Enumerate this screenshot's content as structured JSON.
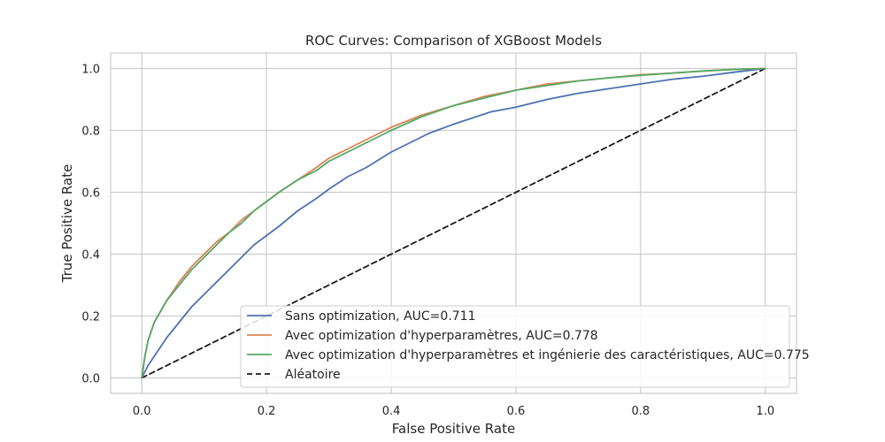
{
  "chart_data": {
    "type": "line",
    "title": "ROC Curves: Comparison of XGBoost Models",
    "xlabel": "False Positive Rate",
    "ylabel": "True Positive Rate",
    "xlim": [
      -0.05,
      1.05
    ],
    "ylim": [
      -0.05,
      1.05
    ],
    "x_ticks": [
      "0.0",
      "0.2",
      "0.4",
      "0.6",
      "0.8",
      "1.0"
    ],
    "y_ticks": [
      "0.0",
      "0.2",
      "0.4",
      "0.6",
      "0.8",
      "1.0"
    ],
    "grid": true,
    "legend_position": "lower-right",
    "series": [
      {
        "name": "Sans optimization, AUC=0.711",
        "color": "#4c72b0",
        "dash": "solid",
        "x": [
          0,
          0.01,
          0.02,
          0.04,
          0.06,
          0.08,
          0.1,
          0.12,
          0.14,
          0.16,
          0.18,
          0.2,
          0.22,
          0.25,
          0.28,
          0.3,
          0.33,
          0.36,
          0.4,
          0.43,
          0.46,
          0.5,
          0.53,
          0.56,
          0.6,
          0.65,
          0.7,
          0.75,
          0.8,
          0.85,
          0.9,
          0.95,
          1.0
        ],
        "y": [
          0.0,
          0.04,
          0.07,
          0.13,
          0.18,
          0.23,
          0.27,
          0.31,
          0.35,
          0.39,
          0.43,
          0.46,
          0.49,
          0.54,
          0.58,
          0.61,
          0.65,
          0.68,
          0.73,
          0.76,
          0.79,
          0.82,
          0.84,
          0.86,
          0.875,
          0.9,
          0.92,
          0.935,
          0.95,
          0.965,
          0.975,
          0.988,
          1.0
        ]
      },
      {
        "name": "Avec optimization d'hyperparamètres, AUC=0.778",
        "color": "#dd8452",
        "dash": "solid",
        "x": [
          0,
          0.005,
          0.01,
          0.02,
          0.04,
          0.06,
          0.08,
          0.1,
          0.12,
          0.14,
          0.16,
          0.18,
          0.2,
          0.22,
          0.25,
          0.28,
          0.3,
          0.33,
          0.36,
          0.4,
          0.45,
          0.5,
          0.55,
          0.6,
          0.65,
          0.7,
          0.75,
          0.8,
          0.85,
          0.9,
          0.95,
          1.0
        ],
        "y": [
          0.0,
          0.07,
          0.12,
          0.18,
          0.25,
          0.31,
          0.36,
          0.4,
          0.44,
          0.47,
          0.51,
          0.54,
          0.57,
          0.6,
          0.64,
          0.68,
          0.71,
          0.74,
          0.77,
          0.81,
          0.85,
          0.88,
          0.91,
          0.93,
          0.95,
          0.96,
          0.97,
          0.98,
          0.985,
          0.992,
          0.997,
          1.0
        ]
      },
      {
        "name": "Avec optimization d'hyperparamètres et ingénierie des caractéristiques, AUC=0.775",
        "color": "#55a868",
        "dash": "solid",
        "x": [
          0,
          0.005,
          0.01,
          0.02,
          0.04,
          0.06,
          0.08,
          0.1,
          0.12,
          0.14,
          0.16,
          0.18,
          0.2,
          0.22,
          0.25,
          0.28,
          0.3,
          0.33,
          0.36,
          0.4,
          0.45,
          0.5,
          0.55,
          0.6,
          0.65,
          0.7,
          0.75,
          0.8,
          0.85,
          0.9,
          0.95,
          1.0
        ],
        "y": [
          0.0,
          0.07,
          0.12,
          0.18,
          0.25,
          0.3,
          0.35,
          0.39,
          0.43,
          0.47,
          0.5,
          0.54,
          0.57,
          0.6,
          0.64,
          0.67,
          0.7,
          0.73,
          0.76,
          0.8,
          0.845,
          0.88,
          0.905,
          0.93,
          0.945,
          0.96,
          0.97,
          0.978,
          0.985,
          0.992,
          0.997,
          1.0
        ]
      },
      {
        "name": "Aléatoire",
        "color": "#1a1a1a",
        "dash": "dashed",
        "x": [
          0,
          1
        ],
        "y": [
          0,
          1
        ]
      }
    ]
  }
}
